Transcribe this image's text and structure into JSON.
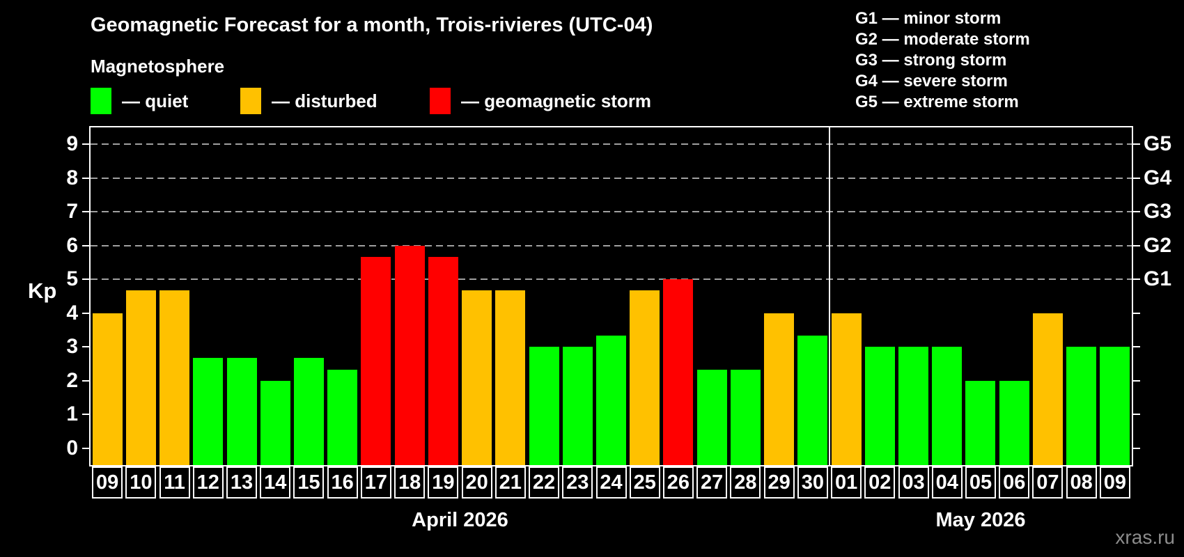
{
  "title": "Geomagnetic Forecast for a month, Trois-rivieres (UTC-04)",
  "subtitle": "Magnetosphere",
  "legend": [
    {
      "status": "quiet",
      "label": "— quiet"
    },
    {
      "status": "disturbed",
      "label": "— disturbed"
    },
    {
      "status": "storm",
      "label": "— geomagnetic storm"
    }
  ],
  "g_legend": [
    "G1 — minor storm",
    "G2 — moderate storm",
    "G3 — strong storm",
    "G4 — severe storm",
    "G5 — extreme storm"
  ],
  "colors": {
    "quiet": "#00ff00",
    "disturbed": "#ffc100",
    "storm": "#ff0000",
    "grid": "#a0a0a0",
    "axis": "#ffffff"
  },
  "watermark": "xras.ru",
  "chart_data": {
    "type": "bar",
    "ylabel": "Kp",
    "ylim": [
      -0.5,
      9.5
    ],
    "y_ticks": [
      0,
      1,
      2,
      3,
      4,
      5,
      6,
      7,
      8,
      9
    ],
    "grid_kp": [
      5,
      6,
      7,
      8,
      9
    ],
    "right_axis": [
      {
        "label": "G5",
        "kp": 9
      },
      {
        "label": "G4",
        "kp": 8
      },
      {
        "label": "G3",
        "kp": 7
      },
      {
        "label": "G2",
        "kp": 6
      },
      {
        "label": "G1",
        "kp": 5
      }
    ],
    "months": [
      {
        "name": "April 2026",
        "days": [
          {
            "day": "09",
            "kp": 4.0,
            "status": "disturbed"
          },
          {
            "day": "10",
            "kp": 4.67,
            "status": "disturbed"
          },
          {
            "day": "11",
            "kp": 4.67,
            "status": "disturbed"
          },
          {
            "day": "12",
            "kp": 2.67,
            "status": "quiet"
          },
          {
            "day": "13",
            "kp": 2.67,
            "status": "quiet"
          },
          {
            "day": "14",
            "kp": 2.0,
            "status": "quiet"
          },
          {
            "day": "15",
            "kp": 2.67,
            "status": "quiet"
          },
          {
            "day": "16",
            "kp": 2.33,
            "status": "quiet"
          },
          {
            "day": "17",
            "kp": 5.67,
            "status": "storm"
          },
          {
            "day": "18",
            "kp": 6.0,
            "status": "storm"
          },
          {
            "day": "19",
            "kp": 5.67,
            "status": "storm"
          },
          {
            "day": "20",
            "kp": 4.67,
            "status": "disturbed"
          },
          {
            "day": "21",
            "kp": 4.67,
            "status": "disturbed"
          },
          {
            "day": "22",
            "kp": 3.0,
            "status": "quiet"
          },
          {
            "day": "23",
            "kp": 3.0,
            "status": "quiet"
          },
          {
            "day": "24",
            "kp": 3.33,
            "status": "quiet"
          },
          {
            "day": "25",
            "kp": 4.67,
            "status": "disturbed"
          },
          {
            "day": "26",
            "kp": 5.0,
            "status": "storm"
          },
          {
            "day": "27",
            "kp": 2.33,
            "status": "quiet"
          },
          {
            "day": "28",
            "kp": 2.33,
            "status": "quiet"
          },
          {
            "day": "29",
            "kp": 4.0,
            "status": "disturbed"
          },
          {
            "day": "30",
            "kp": 3.33,
            "status": "quiet"
          }
        ]
      },
      {
        "name": "May 2026",
        "days": [
          {
            "day": "01",
            "kp": 4.0,
            "status": "disturbed"
          },
          {
            "day": "02",
            "kp": 3.0,
            "status": "quiet"
          },
          {
            "day": "03",
            "kp": 3.0,
            "status": "quiet"
          },
          {
            "day": "04",
            "kp": 3.0,
            "status": "quiet"
          },
          {
            "day": "05",
            "kp": 2.0,
            "status": "quiet"
          },
          {
            "day": "06",
            "kp": 2.0,
            "status": "quiet"
          },
          {
            "day": "07",
            "kp": 4.0,
            "status": "disturbed"
          },
          {
            "day": "08",
            "kp": 3.0,
            "status": "quiet"
          },
          {
            "day": "09",
            "kp": 3.0,
            "status": "quiet"
          }
        ]
      }
    ]
  }
}
